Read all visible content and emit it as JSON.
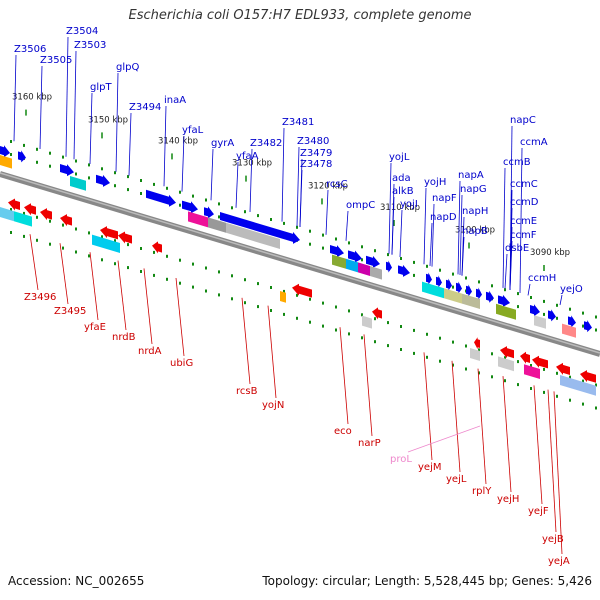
{
  "title": "Escherichia coli O157:H7 EDL933, complete genome",
  "footer": {
    "accession": "Accession: NC_002655",
    "info": "Topology: circular; Length: 5,528,445 bp; Genes: 5,426"
  },
  "colors": {
    "forward_gene": "#0000ee",
    "reverse_gene": "#ee0000",
    "forward_label": "#0000cc",
    "reverse_label": "#cc0000",
    "rna_label": "#ee88cc",
    "backbone": "#888888",
    "tick": "#118811"
  },
  "ticks": [
    {
      "label": "3160 kbp"
    },
    {
      "label": "3150 kbp"
    },
    {
      "label": "3140 kbp"
    },
    {
      "label": "3130 kbp"
    },
    {
      "label": "3120 kbp"
    },
    {
      "label": "3110 kbp"
    },
    {
      "label": "3100 kbp"
    },
    {
      "label": "3090 kbp"
    }
  ],
  "forward_labels": [
    "Z3506",
    "Z3504",
    "Z3503",
    "Z3505",
    "glpQ",
    "glpT",
    "Z3494",
    "inaA",
    "yfaL",
    "gyrA",
    "Z3482",
    "yfaA",
    "Z3481",
    "Z3480",
    "Z3479",
    "Z3478",
    "rcsC",
    "yojL",
    "ada",
    "alkB",
    "ompC",
    "yojH",
    "yojI",
    "napF",
    "napD",
    "napA",
    "napG",
    "napH",
    "napB",
    "napC",
    "ccmA",
    "ccmB",
    "ccmC",
    "ccmD",
    "ccmE",
    "ccmF",
    "dsbE",
    "ccmH",
    "yejO"
  ],
  "reverse_labels": [
    "Z3496",
    "Z3495",
    "yfaE",
    "nrdB",
    "nrdA",
    "ubiG",
    "rcsB",
    "yojN",
    "eco",
    "narP",
    "yejM",
    "yejL",
    "rplY",
    "yejH",
    "yejF",
    "yejB",
    "yejA"
  ],
  "rna_labels": [
    "proL"
  ]
}
